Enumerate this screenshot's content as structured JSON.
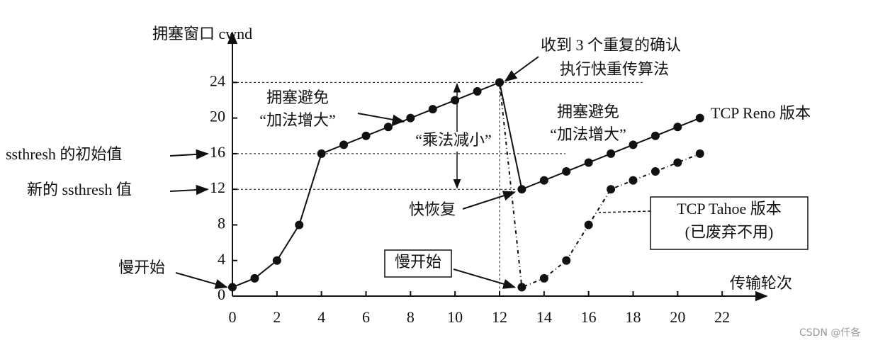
{
  "chart_data": {
    "type": "line",
    "y_label": "拥塞窗口 cwnd",
    "x_label": "传输轮次",
    "x": [
      0,
      1,
      2,
      3,
      4,
      5,
      6,
      7,
      8,
      9,
      10,
      11,
      12,
      13,
      14,
      15,
      16,
      17,
      18,
      19,
      20,
      21
    ],
    "series": [
      {
        "name": "TCP Reno 版本",
        "color": "#111111",
        "values": [
          1,
          2,
          4,
          8,
          16,
          17,
          18,
          19,
          20,
          21,
          22,
          23,
          24,
          12,
          13,
          14,
          15,
          16,
          17,
          18,
          19,
          20
        ]
      },
      {
        "name": "TCP Tahoe 版本",
        "color": "#111111",
        "values": [
          null,
          null,
          null,
          null,
          null,
          null,
          null,
          null,
          null,
          null,
          null,
          null,
          24,
          1,
          2,
          4,
          8,
          12,
          13,
          14,
          15,
          16
        ]
      }
    ],
    "xlim": [
      0,
      24
    ],
    "ylim": [
      0,
      29.6
    ],
    "xticks": [
      0,
      2,
      4,
      6,
      8,
      10,
      12,
      14,
      16,
      18,
      20,
      22
    ],
    "yticks": [
      0,
      4,
      8,
      12,
      16,
      20,
      24
    ],
    "annotations": [
      "收到 3 个重复的确认",
      "执行快重传算法",
      "拥塞避免",
      "“加法增大”",
      "“乘法减小”",
      "拥塞避免",
      "“加法增大”",
      "ssthresh 的初始值",
      "新的 ssthresh 值",
      "快恢复",
      "慢开始",
      "慢开始",
      "(已废弃不用)"
    ],
    "watermark": "CSDN @仟各"
  }
}
